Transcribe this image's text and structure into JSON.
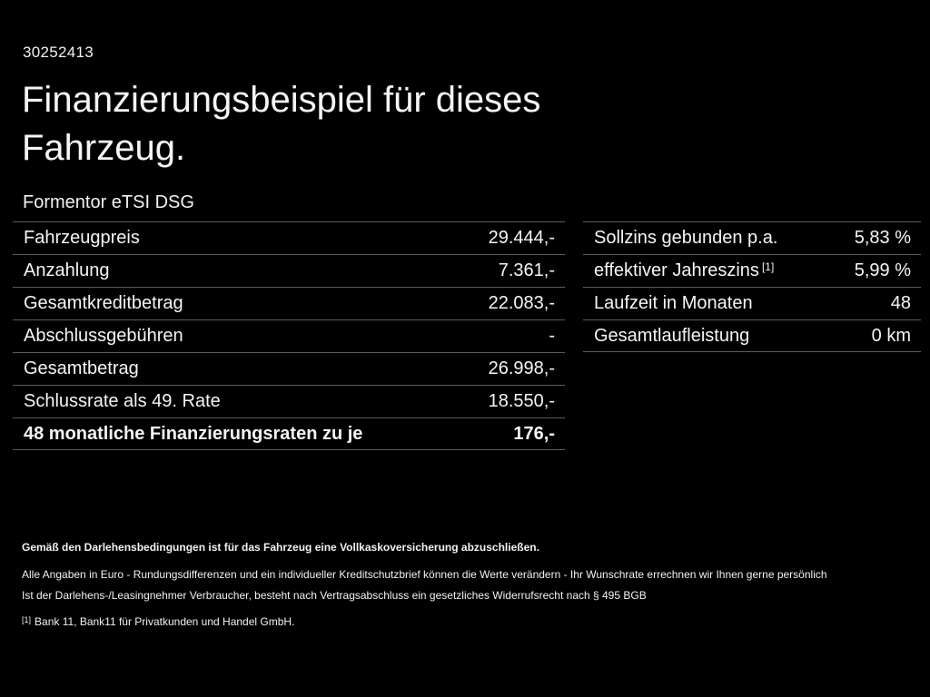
{
  "page": {
    "id_number": "30252413",
    "title_line1": "Finanzierungsbeispiel für dieses",
    "title_line2": "Fahrzeug.",
    "model": "Formentor eTSI DSG"
  },
  "left_table": {
    "rows": [
      {
        "label": "Fahrzeugpreis",
        "value": "29.444,-"
      },
      {
        "label": "Anzahlung",
        "value": "7.361,-"
      },
      {
        "label": "Gesamtkreditbetrag",
        "value": "22.083,-"
      },
      {
        "label": "Abschlussgebühren",
        "value": "-"
      },
      {
        "label": "Gesamtbetrag",
        "value": "26.998,-"
      },
      {
        "label": "Schlussrate als 49. Rate",
        "value": "18.550,-"
      },
      {
        "label": "48 monatliche Finanzierungsraten zu je",
        "value": "176,-"
      }
    ]
  },
  "right_table": {
    "rows": [
      {
        "label": "Sollzins gebunden p.a.",
        "value": "5,83 %"
      },
      {
        "label": "effektiver Jahreszins",
        "label_sup": "[1]",
        "value": "5,99 %"
      },
      {
        "label": "Laufzeit in Monaten",
        "value": "48"
      },
      {
        "label": "Gesamtlaufleistung",
        "value": "0 km"
      }
    ]
  },
  "footnotes": {
    "line1": "Gemäß den Darlehensbedingungen ist für das Fahrzeug eine Vollkaskoversicherung abzuschließen.",
    "line2": "Alle Angaben in Euro - Rundungsdifferenzen und ein individueller Kreditschutzbrief können die Werte verändern - Ihr Wunschrate errechnen wir Ihnen gerne persönlich",
    "line3": "Ist der Darlehens-/Leasingnehmer Verbraucher, besteht nach Vertragsabschluss ein gesetzliches Widerrufsrecht nach § 495 BGB",
    "line4_sup": "[1]",
    "line4": "Bank 11, Bank11 für Privatkunden und Handel GmbH."
  },
  "colors": {
    "background": "#000000",
    "text": "#f5f5f5",
    "divider": "#5c5c5c"
  }
}
